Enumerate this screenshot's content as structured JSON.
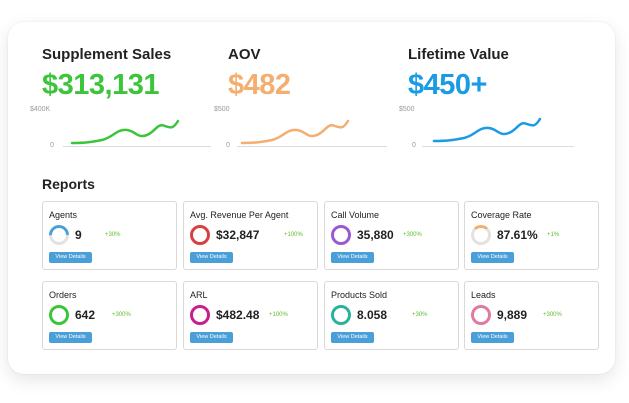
{
  "metrics": [
    {
      "title": "Supplement Sales",
      "value": "$313,131",
      "color": "#3cc43a",
      "axis_top": "$400K",
      "axis_zero": "0"
    },
    {
      "title": "AOV",
      "value": "$482",
      "color": "#f4ae6f",
      "axis_top": "$500",
      "axis_zero": "0"
    },
    {
      "title": "Lifetime Value",
      "value": "$450+",
      "color": "#1a9be6",
      "axis_top": "$500",
      "axis_zero": "0"
    }
  ],
  "reports": {
    "title": "Reports",
    "button_label": "View Details",
    "cards": [
      {
        "title": "Agents",
        "value": "9",
        "delta": "+30%",
        "ring_color": "#4a9fd8",
        "ring_fill": 0.25
      },
      {
        "title": "Avg. Revenue Per Agent",
        "value": "$32,847",
        "delta": "+100%",
        "ring_color": "#d84040",
        "ring_fill": 1
      },
      {
        "title": "Call Volume",
        "value": "35,880",
        "delta": "+300%",
        "ring_color": "#9b59d0",
        "ring_fill": 1
      },
      {
        "title": "Coverage Rate",
        "value": "87.61%",
        "delta": "+1%",
        "ring_color": "#f4ae6f",
        "ring_fill": 0.08
      },
      {
        "title": "Orders",
        "value": "642",
        "delta": "+300%",
        "ring_color": "#3cc43a",
        "ring_fill": 1
      },
      {
        "title": "ARL",
        "value": "$482.48",
        "delta": "+100%",
        "ring_color": "#c81e8c",
        "ring_fill": 1
      },
      {
        "title": "Products Sold",
        "value": "8.058",
        "delta": "+30%",
        "ring_color": "#2bb39a",
        "ring_fill": 1
      },
      {
        "title": "Leads",
        "value": "9,889",
        "delta": "+300%",
        "ring_color": "#e07aa0",
        "ring_fill": 1
      }
    ]
  }
}
